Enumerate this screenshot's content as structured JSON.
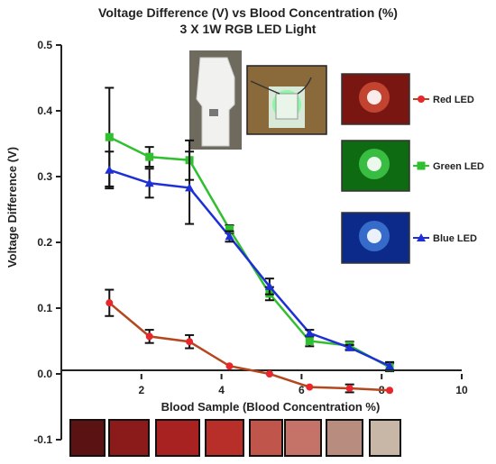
{
  "chart_data": {
    "type": "line",
    "title": "Voltage Difference (V) vs Blood Concentration (%)",
    "subtitle": "3 X 1W RGB LED Light",
    "xlabel": "Blood Sample (Blood Concentration %)",
    "ylabel": "Voltage Difference (V)",
    "xlim": [
      0,
      10
    ],
    "ylim": [
      -0.1,
      0.5
    ],
    "x_ticks": [
      2,
      4,
      6,
      8,
      10
    ],
    "y_ticks": [
      -0.1,
      0.0,
      0.1,
      0.2,
      0.3,
      0.4,
      0.5
    ],
    "x_tick_labels": [
      "2",
      "4",
      "6",
      "8",
      "10"
    ],
    "y_tick_labels": [
      "-0.1",
      "0.0",
      "0.1",
      "0.2",
      "0.3",
      "0.4",
      "0.5"
    ],
    "grid": false,
    "legend_position": "right",
    "series": [
      {
        "name": "Red LED",
        "color": "#e8262b",
        "line_color": "#b5471e",
        "marker": "circle",
        "x": [
          1.2,
          2.2,
          3.2,
          4.2,
          5.2,
          6.2,
          7.2,
          8.2
        ],
        "y": [
          0.108,
          0.057,
          0.049,
          0.012,
          0.0,
          -0.02,
          -0.022,
          -0.025
        ],
        "error": [
          0.02,
          0.01,
          0.01,
          0,
          0,
          0,
          0.006,
          0
        ]
      },
      {
        "name": "Green LED",
        "color": "#2fbf2f",
        "line_color": "#2fbf2f",
        "marker": "square",
        "x": [
          1.2,
          2.2,
          3.2,
          4.2,
          5.2,
          6.2,
          7.2,
          8.2
        ],
        "y": [
          0.36,
          0.33,
          0.325,
          0.22,
          0.122,
          0.05,
          0.043,
          0.01
        ],
        "error": [
          0.075,
          0.015,
          0.03,
          0.006,
          0.01,
          0.008,
          0.006,
          0.006
        ]
      },
      {
        "name": "Blue LED",
        "color": "#1f2fd6",
        "line_color": "#1f2fd6",
        "marker": "triangle",
        "x": [
          1.2,
          2.2,
          3.2,
          4.2,
          5.2,
          6.2,
          7.2,
          8.2
        ],
        "y": [
          0.31,
          0.29,
          0.283,
          0.209,
          0.133,
          0.062,
          0.04,
          0.012
        ],
        "error": [
          0.028,
          0.022,
          0.055,
          0.008,
          0.012,
          0.005,
          0.004,
          0.006
        ]
      }
    ],
    "sample_swatch_colors": [
      "#5a1212",
      "#8b1a1a",
      "#a82222",
      "#b82e28",
      "#c0554c",
      "#c57268",
      "#b98c80",
      "#c8b6a6"
    ]
  }
}
